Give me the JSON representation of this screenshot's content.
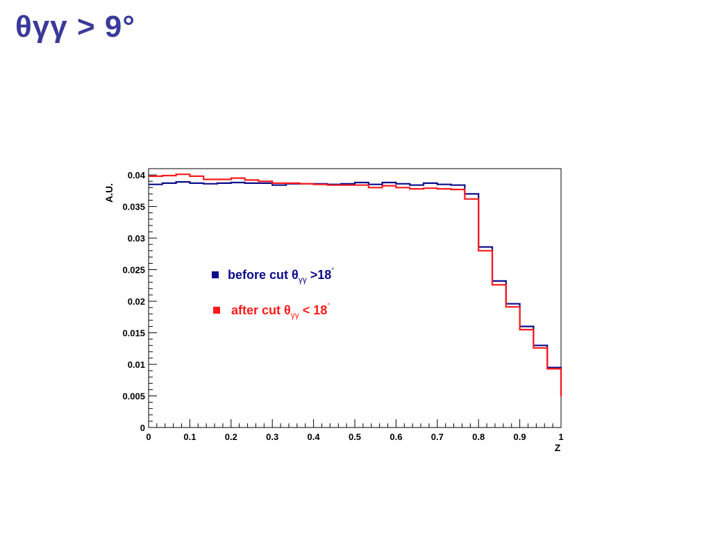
{
  "slide": {
    "title": "θγγ > 9°"
  },
  "colors": {
    "title": "#3a3a9a",
    "before": "#0b0b8a",
    "after": "#ff1a1a"
  },
  "chart_data": {
    "type": "line",
    "ylabel": "A.U.",
    "xlabel": "Z",
    "xlim": [
      0,
      1
    ],
    "ylim": [
      0,
      0.041
    ],
    "x_ticks": [
      "0",
      "0.1",
      "0.2",
      "0.3",
      "0.4",
      "0.5",
      "0.6",
      "0.7",
      "0.8",
      "0.9",
      "1"
    ],
    "y_ticks": [
      "0",
      "0.005",
      "0.01",
      "0.015",
      "0.02",
      "0.025",
      "0.03",
      "0.035",
      "0.04"
    ],
    "bin_edges": [
      0,
      0.0333,
      0.0667,
      0.1,
      0.1333,
      0.1667,
      0.2,
      0.2333,
      0.2667,
      0.3,
      0.3333,
      0.3667,
      0.4,
      0.4333,
      0.4667,
      0.5,
      0.5333,
      0.5667,
      0.6,
      0.6333,
      0.6667,
      0.7,
      0.7333,
      0.7667,
      0.8,
      0.8333,
      0.8667,
      0.9,
      0.9333,
      0.9667,
      1.0
    ],
    "series": [
      {
        "key": "before",
        "legend_text": "before cut θ",
        "legend_sub": "γγ",
        "legend_tail": " >18",
        "legend_sup": "°",
        "values": [
          0.0385,
          0.0387,
          0.0389,
          0.0387,
          0.0386,
          0.0387,
          0.0388,
          0.0387,
          0.0387,
          0.0384,
          0.0386,
          0.0386,
          0.0386,
          0.0385,
          0.0386,
          0.0388,
          0.0385,
          0.0388,
          0.0386,
          0.0384,
          0.0387,
          0.0385,
          0.0384,
          0.037,
          0.0286,
          0.0232,
          0.0196,
          0.016,
          0.013,
          0.0095,
          0.005
        ]
      },
      {
        "key": "after",
        "legend_text": "after cut θ",
        "legend_sub": "γγ",
        "legend_tail": " < 18",
        "legend_sup": "°",
        "values": [
          0.0398,
          0.0399,
          0.0401,
          0.0398,
          0.0393,
          0.0393,
          0.0395,
          0.0392,
          0.039,
          0.0387,
          0.0387,
          0.0386,
          0.0385,
          0.0384,
          0.0384,
          0.0384,
          0.038,
          0.0383,
          0.038,
          0.0378,
          0.0379,
          0.0378,
          0.0377,
          0.0362,
          0.028,
          0.0226,
          0.0191,
          0.0155,
          0.0126,
          0.0093,
          0.0049
        ]
      }
    ],
    "grid": false,
    "legend_position": "middle-left"
  }
}
